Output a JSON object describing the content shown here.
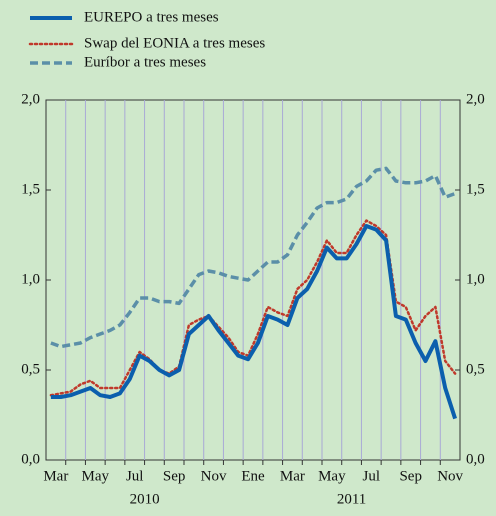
{
  "chart_data": {
    "type": "line",
    "categories": [
      "Mar",
      null,
      null,
      null,
      "May",
      null,
      null,
      null,
      "Jul",
      null,
      null,
      null,
      "Sep",
      null,
      null,
      null,
      "Nov",
      null,
      null,
      null,
      "Ene",
      null,
      null,
      null,
      "Mar",
      null,
      null,
      null,
      "May",
      null,
      null,
      null,
      "Jul",
      null,
      null,
      null,
      "Sep",
      null,
      null,
      null,
      "Nov",
      null
    ],
    "year_labels": [
      "2010",
      "2011"
    ],
    "series": [
      {
        "name": "EUREPO a tres meses",
        "color": "#0b5fad",
        "style": "solid",
        "values": [
          0.35,
          0.35,
          0.36,
          0.38,
          0.4,
          0.36,
          0.35,
          0.37,
          0.45,
          0.58,
          0.55,
          0.5,
          0.47,
          0.5,
          0.7,
          0.75,
          0.8,
          0.72,
          0.65,
          0.58,
          0.56,
          0.65,
          0.8,
          0.78,
          0.75,
          0.9,
          0.95,
          1.05,
          1.18,
          1.12,
          1.12,
          1.2,
          1.3,
          1.28,
          1.22,
          0.8,
          0.78,
          0.65,
          0.55,
          0.66,
          0.4,
          0.23
        ]
      },
      {
        "name": "Swap del EONIA a tres meses",
        "color": "#c0392b",
        "style": "dotted",
        "values": [
          0.36,
          0.37,
          0.38,
          0.42,
          0.44,
          0.4,
          0.4,
          0.4,
          0.5,
          0.6,
          0.56,
          0.5,
          0.48,
          0.52,
          0.75,
          0.78,
          0.8,
          0.74,
          0.68,
          0.6,
          0.58,
          0.7,
          0.85,
          0.82,
          0.8,
          0.95,
          1.0,
          1.1,
          1.22,
          1.15,
          1.15,
          1.25,
          1.33,
          1.3,
          1.25,
          0.88,
          0.85,
          0.72,
          0.8,
          0.85,
          0.55,
          0.48
        ]
      },
      {
        "name": "Euríbor a tres meses",
        "color": "#5b8fa8",
        "style": "dashed",
        "values": [
          0.65,
          0.63,
          0.64,
          0.65,
          0.68,
          0.7,
          0.72,
          0.75,
          0.82,
          0.9,
          0.9,
          0.88,
          0.88,
          0.87,
          0.95,
          1.03,
          1.05,
          1.04,
          1.02,
          1.01,
          1.0,
          1.05,
          1.1,
          1.1,
          1.14,
          1.25,
          1.32,
          1.4,
          1.43,
          1.43,
          1.45,
          1.52,
          1.55,
          1.61,
          1.62,
          1.55,
          1.54,
          1.54,
          1.55,
          1.58,
          1.46,
          1.48
        ]
      }
    ],
    "ylim": [
      0,
      2
    ],
    "yticks": [
      {
        "value": 0,
        "label": "0,0"
      },
      {
        "value": 0.5,
        "label": "0,5"
      },
      {
        "value": 1,
        "label": "1,0"
      },
      {
        "value": 1.5,
        "label": "1,5"
      },
      {
        "value": 2,
        "label": "2,0"
      }
    ],
    "grid": true
  }
}
